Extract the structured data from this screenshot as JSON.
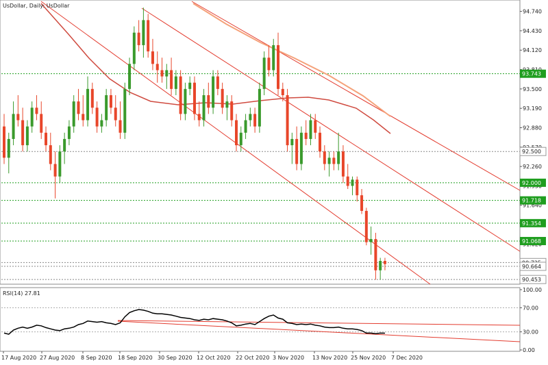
{
  "window": {
    "title": "UsDollar, Daily:  UsDollar"
  },
  "colors": {
    "up": "#3a9a2c",
    "down": "#e8462a",
    "channel": "#e33b2e",
    "ma_fast": "#cf4a3f",
    "ma_slow": "#f5a27a",
    "level_tag": "#1f9e1f",
    "grid": "#7a9a7a",
    "rsi_line": "#000000"
  },
  "chart_data": [
    {
      "type": "candlestick",
      "title": "UsDollar, Daily:  UsDollar",
      "ylim": [
        90.4,
        94.9
      ],
      "y_ticks": [
        "94.740",
        "94.430",
        "94.120",
        "93.810",
        "93.500",
        "93.190",
        "92.880",
        "92.570",
        "92.260",
        "91.950",
        "91.640",
        "91.330",
        "91.020",
        "90.725"
      ],
      "x_ticks": [
        "17 Aug 2020",
        "27 Aug 2020",
        "8 Sep 2020",
        "18 Sep 2020",
        "30 Sep 2020",
        "12 Oct 2020",
        "22 Oct 2020",
        "3 Nov 2020",
        "13 Nov 2020",
        "25 Nov 2020",
        "7 Dec 2020"
      ],
      "levels": [
        {
          "value": 93.743,
          "label": "93.743",
          "style": "tag"
        },
        {
          "value": 92.5,
          "label": "92.500",
          "style": "tag-gray"
        },
        {
          "value": 92.0,
          "label": "92.000",
          "style": "tag"
        },
        {
          "value": 91.718,
          "label": "91.718",
          "style": "tag"
        },
        {
          "value": 91.354,
          "label": "91.354",
          "style": "tag"
        },
        {
          "value": 91.068,
          "label": "91.068",
          "style": "tag"
        },
        {
          "value": 90.725,
          "label": "90.725",
          "style": "tag-gray"
        },
        {
          "value": 90.664,
          "label": "90.664",
          "style": "tag-gray"
        },
        {
          "value": 90.453,
          "label": "90.453",
          "style": "tag-gray"
        }
      ],
      "ohlc": [
        [
          92.9,
          93.1,
          92.3,
          92.4
        ],
        [
          92.4,
          92.8,
          92.15,
          92.7
        ],
        [
          92.7,
          93.3,
          92.6,
          93.1
        ],
        [
          93.1,
          93.4,
          92.9,
          93.0
        ],
        [
          93.0,
          93.2,
          92.5,
          92.6
        ],
        [
          92.6,
          93.0,
          92.5,
          92.9
        ],
        [
          92.9,
          93.3,
          92.8,
          93.2
        ],
        [
          93.2,
          93.4,
          93.0,
          93.1
        ],
        [
          93.1,
          93.3,
          92.7,
          92.8
        ],
        [
          92.8,
          92.9,
          92.5,
          92.6
        ],
        [
          92.6,
          92.8,
          92.2,
          92.3
        ],
        [
          92.3,
          92.5,
          91.75,
          92.1
        ],
        [
          92.1,
          92.6,
          92.0,
          92.5
        ],
        [
          92.5,
          92.8,
          92.3,
          92.7
        ],
        [
          92.7,
          93.0,
          92.6,
          92.9
        ],
        [
          92.9,
          93.4,
          92.8,
          93.3
        ],
        [
          93.3,
          93.5,
          93.0,
          93.1
        ],
        [
          93.1,
          93.4,
          92.9,
          93.0
        ],
        [
          93.0,
          93.7,
          92.9,
          93.5
        ],
        [
          93.5,
          93.6,
          93.1,
          93.2
        ],
        [
          93.2,
          93.3,
          92.8,
          92.9
        ],
        [
          92.9,
          93.1,
          92.8,
          93.0
        ],
        [
          93.0,
          93.5,
          92.9,
          93.4
        ],
        [
          93.4,
          93.5,
          93.1,
          93.2
        ],
        [
          93.2,
          93.4,
          92.9,
          93.0
        ],
        [
          93.0,
          93.3,
          92.7,
          92.8
        ],
        [
          92.8,
          93.6,
          92.7,
          93.5
        ],
        [
          93.5,
          94.0,
          93.4,
          93.9
        ],
        [
          93.9,
          94.5,
          93.8,
          94.4
        ],
        [
          94.4,
          94.6,
          94.1,
          94.2
        ],
        [
          94.2,
          94.8,
          94.0,
          94.6
        ],
        [
          94.6,
          94.7,
          94.0,
          94.1
        ],
        [
          94.1,
          94.3,
          93.8,
          93.9
        ],
        [
          93.9,
          94.1,
          93.6,
          93.8
        ],
        [
          93.8,
          94.0,
          93.6,
          93.7
        ],
        [
          93.7,
          93.9,
          93.5,
          93.8
        ],
        [
          93.8,
          94.0,
          93.4,
          93.5
        ],
        [
          93.5,
          93.8,
          93.4,
          93.7
        ],
        [
          93.7,
          93.8,
          93.0,
          93.1
        ],
        [
          93.1,
          93.6,
          93.0,
          93.5
        ],
        [
          93.5,
          93.7,
          93.4,
          93.6
        ],
        [
          93.6,
          93.7,
          93.0,
          93.1
        ],
        [
          93.1,
          93.3,
          92.9,
          93.0
        ],
        [
          93.0,
          93.5,
          92.9,
          93.4
        ],
        [
          93.4,
          93.6,
          93.1,
          93.2
        ],
        [
          93.2,
          93.8,
          93.1,
          93.7
        ],
        [
          93.7,
          93.8,
          93.4,
          93.5
        ],
        [
          93.5,
          93.6,
          93.1,
          93.2
        ],
        [
          93.2,
          93.4,
          93.0,
          93.3
        ],
        [
          93.3,
          93.4,
          92.9,
          93.0
        ],
        [
          93.0,
          93.1,
          92.5,
          92.6
        ],
        [
          92.6,
          92.9,
          92.5,
          92.8
        ],
        [
          92.8,
          93.1,
          92.7,
          93.0
        ],
        [
          93.0,
          93.2,
          92.9,
          93.1
        ],
        [
          93.1,
          93.2,
          92.8,
          92.9
        ],
        [
          92.9,
          93.6,
          92.8,
          93.5
        ],
        [
          93.5,
          94.1,
          93.4,
          94.0
        ],
        [
          94.0,
          94.2,
          93.7,
          93.8
        ],
        [
          93.8,
          94.3,
          93.7,
          94.2
        ],
        [
          94.2,
          94.4,
          93.4,
          93.5
        ],
        [
          93.5,
          93.6,
          93.3,
          93.4
        ],
        [
          93.4,
          93.5,
          92.5,
          92.6
        ],
        [
          92.6,
          92.8,
          92.3,
          92.7
        ],
        [
          92.7,
          92.9,
          92.2,
          92.3
        ],
        [
          92.3,
          92.9,
          92.2,
          92.8
        ],
        [
          92.8,
          93.0,
          92.6,
          92.7
        ],
        [
          92.7,
          93.1,
          92.6,
          93.0
        ],
        [
          93.0,
          93.1,
          92.7,
          92.8
        ],
        [
          92.8,
          92.9,
          92.4,
          92.5
        ],
        [
          92.5,
          92.6,
          92.2,
          92.3
        ],
        [
          92.3,
          92.5,
          92.1,
          92.4
        ],
        [
          92.4,
          92.5,
          92.2,
          92.3
        ],
        [
          92.3,
          92.8,
          92.2,
          92.5
        ],
        [
          92.5,
          92.6,
          92.0,
          92.1
        ],
        [
          92.1,
          92.3,
          91.9,
          91.95
        ],
        [
          91.95,
          92.1,
          91.8,
          92.05
        ],
        [
          92.05,
          92.1,
          91.7,
          91.8
        ],
        [
          91.8,
          91.9,
          91.5,
          91.55
        ],
        [
          91.55,
          91.6,
          91.0,
          91.05
        ],
        [
          91.05,
          91.3,
          90.85,
          91.1
        ],
        [
          91.1,
          91.2,
          90.45,
          90.6
        ],
        [
          90.6,
          90.8,
          90.45,
          90.75
        ],
        [
          90.75,
          90.8,
          90.6,
          90.7
        ]
      ]
    },
    {
      "type": "line",
      "title": "RSI(14) 27.81",
      "ylim": [
        0,
        100
      ],
      "y_ticks": [
        "100.00",
        "70.00",
        "30.00",
        "0.00"
      ],
      "levels": [
        70,
        30
      ],
      "series": [
        {
          "values": [
            28,
            26,
            33,
            36,
            38,
            36,
            38,
            41,
            40,
            37,
            35,
            33,
            32,
            35,
            36,
            38,
            42,
            44,
            48,
            47,
            46,
            47,
            45,
            44,
            42,
            45,
            55,
            62,
            65,
            67,
            66,
            64,
            61,
            60,
            60,
            59,
            58,
            56,
            54,
            53,
            52,
            50,
            49,
            51,
            50,
            52,
            51,
            50,
            48,
            45,
            40,
            41,
            43,
            44,
            42,
            47,
            52,
            56,
            58,
            53,
            51,
            45,
            44,
            42,
            43,
            42,
            43,
            41,
            40,
            38,
            37,
            37,
            38,
            36,
            35,
            35,
            34,
            32,
            28,
            28,
            27,
            28,
            27.81
          ]
        }
      ],
      "value_label": "27.81"
    }
  ]
}
